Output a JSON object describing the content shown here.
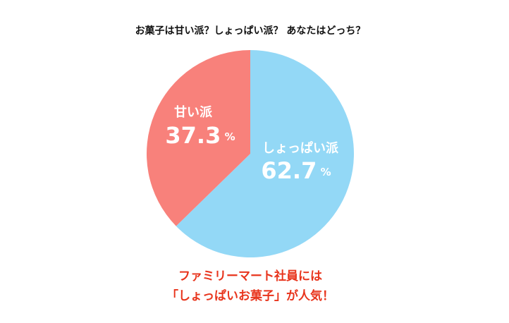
{
  "chart_data": {
    "type": "pie",
    "title": "お菓子は甘い派？しょっぱい派？ あなたはどっち？",
    "categories": [
      "しょっぱい派",
      "甘い派"
    ],
    "values": [
      62.7,
      37.3
    ],
    "value_labels": [
      "62.7 %",
      "37.3 %"
    ],
    "colors": [
      "#93d8f6",
      "#f8817b"
    ],
    "annotations": [
      "ファミリーマート社員には",
      "「しょっぱいお菓子」が人気！"
    ]
  }
}
